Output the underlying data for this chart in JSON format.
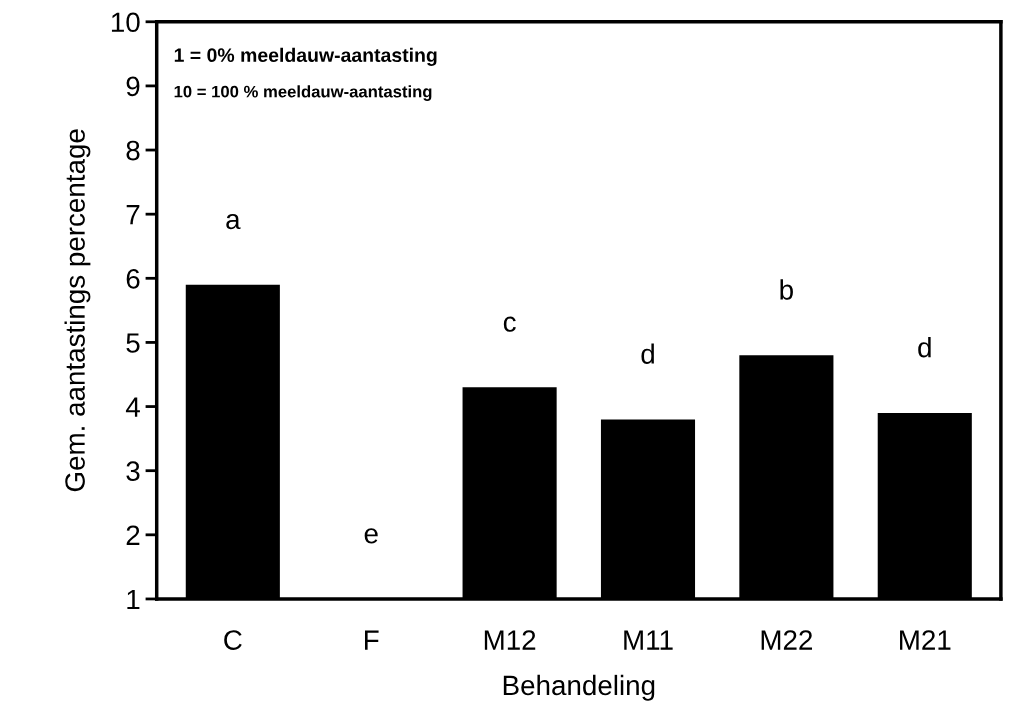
{
  "chart_data": {
    "type": "bar",
    "xlabel": "Behandeling",
    "ylabel": "Gem. aantastings percentage",
    "categories": [
      "C",
      "F",
      "M12",
      "M11",
      "M22",
      "M21"
    ],
    "values": [
      5.9,
      1,
      4.3,
      3.8,
      4.8,
      3.9
    ],
    "color": "#000000",
    "ylim": [
      1,
      10
    ],
    "yticks": [
      1,
      2,
      3,
      4,
      5,
      6,
      7,
      8,
      9,
      10
    ],
    "grid": false,
    "value_labels": [
      "a",
      "e",
      "c",
      "d",
      "b",
      "d"
    ],
    "annotations": [
      "1 = 0% meeldauw-aantasting",
      "10 = 100 % meeldauw-aantasting"
    ]
  }
}
